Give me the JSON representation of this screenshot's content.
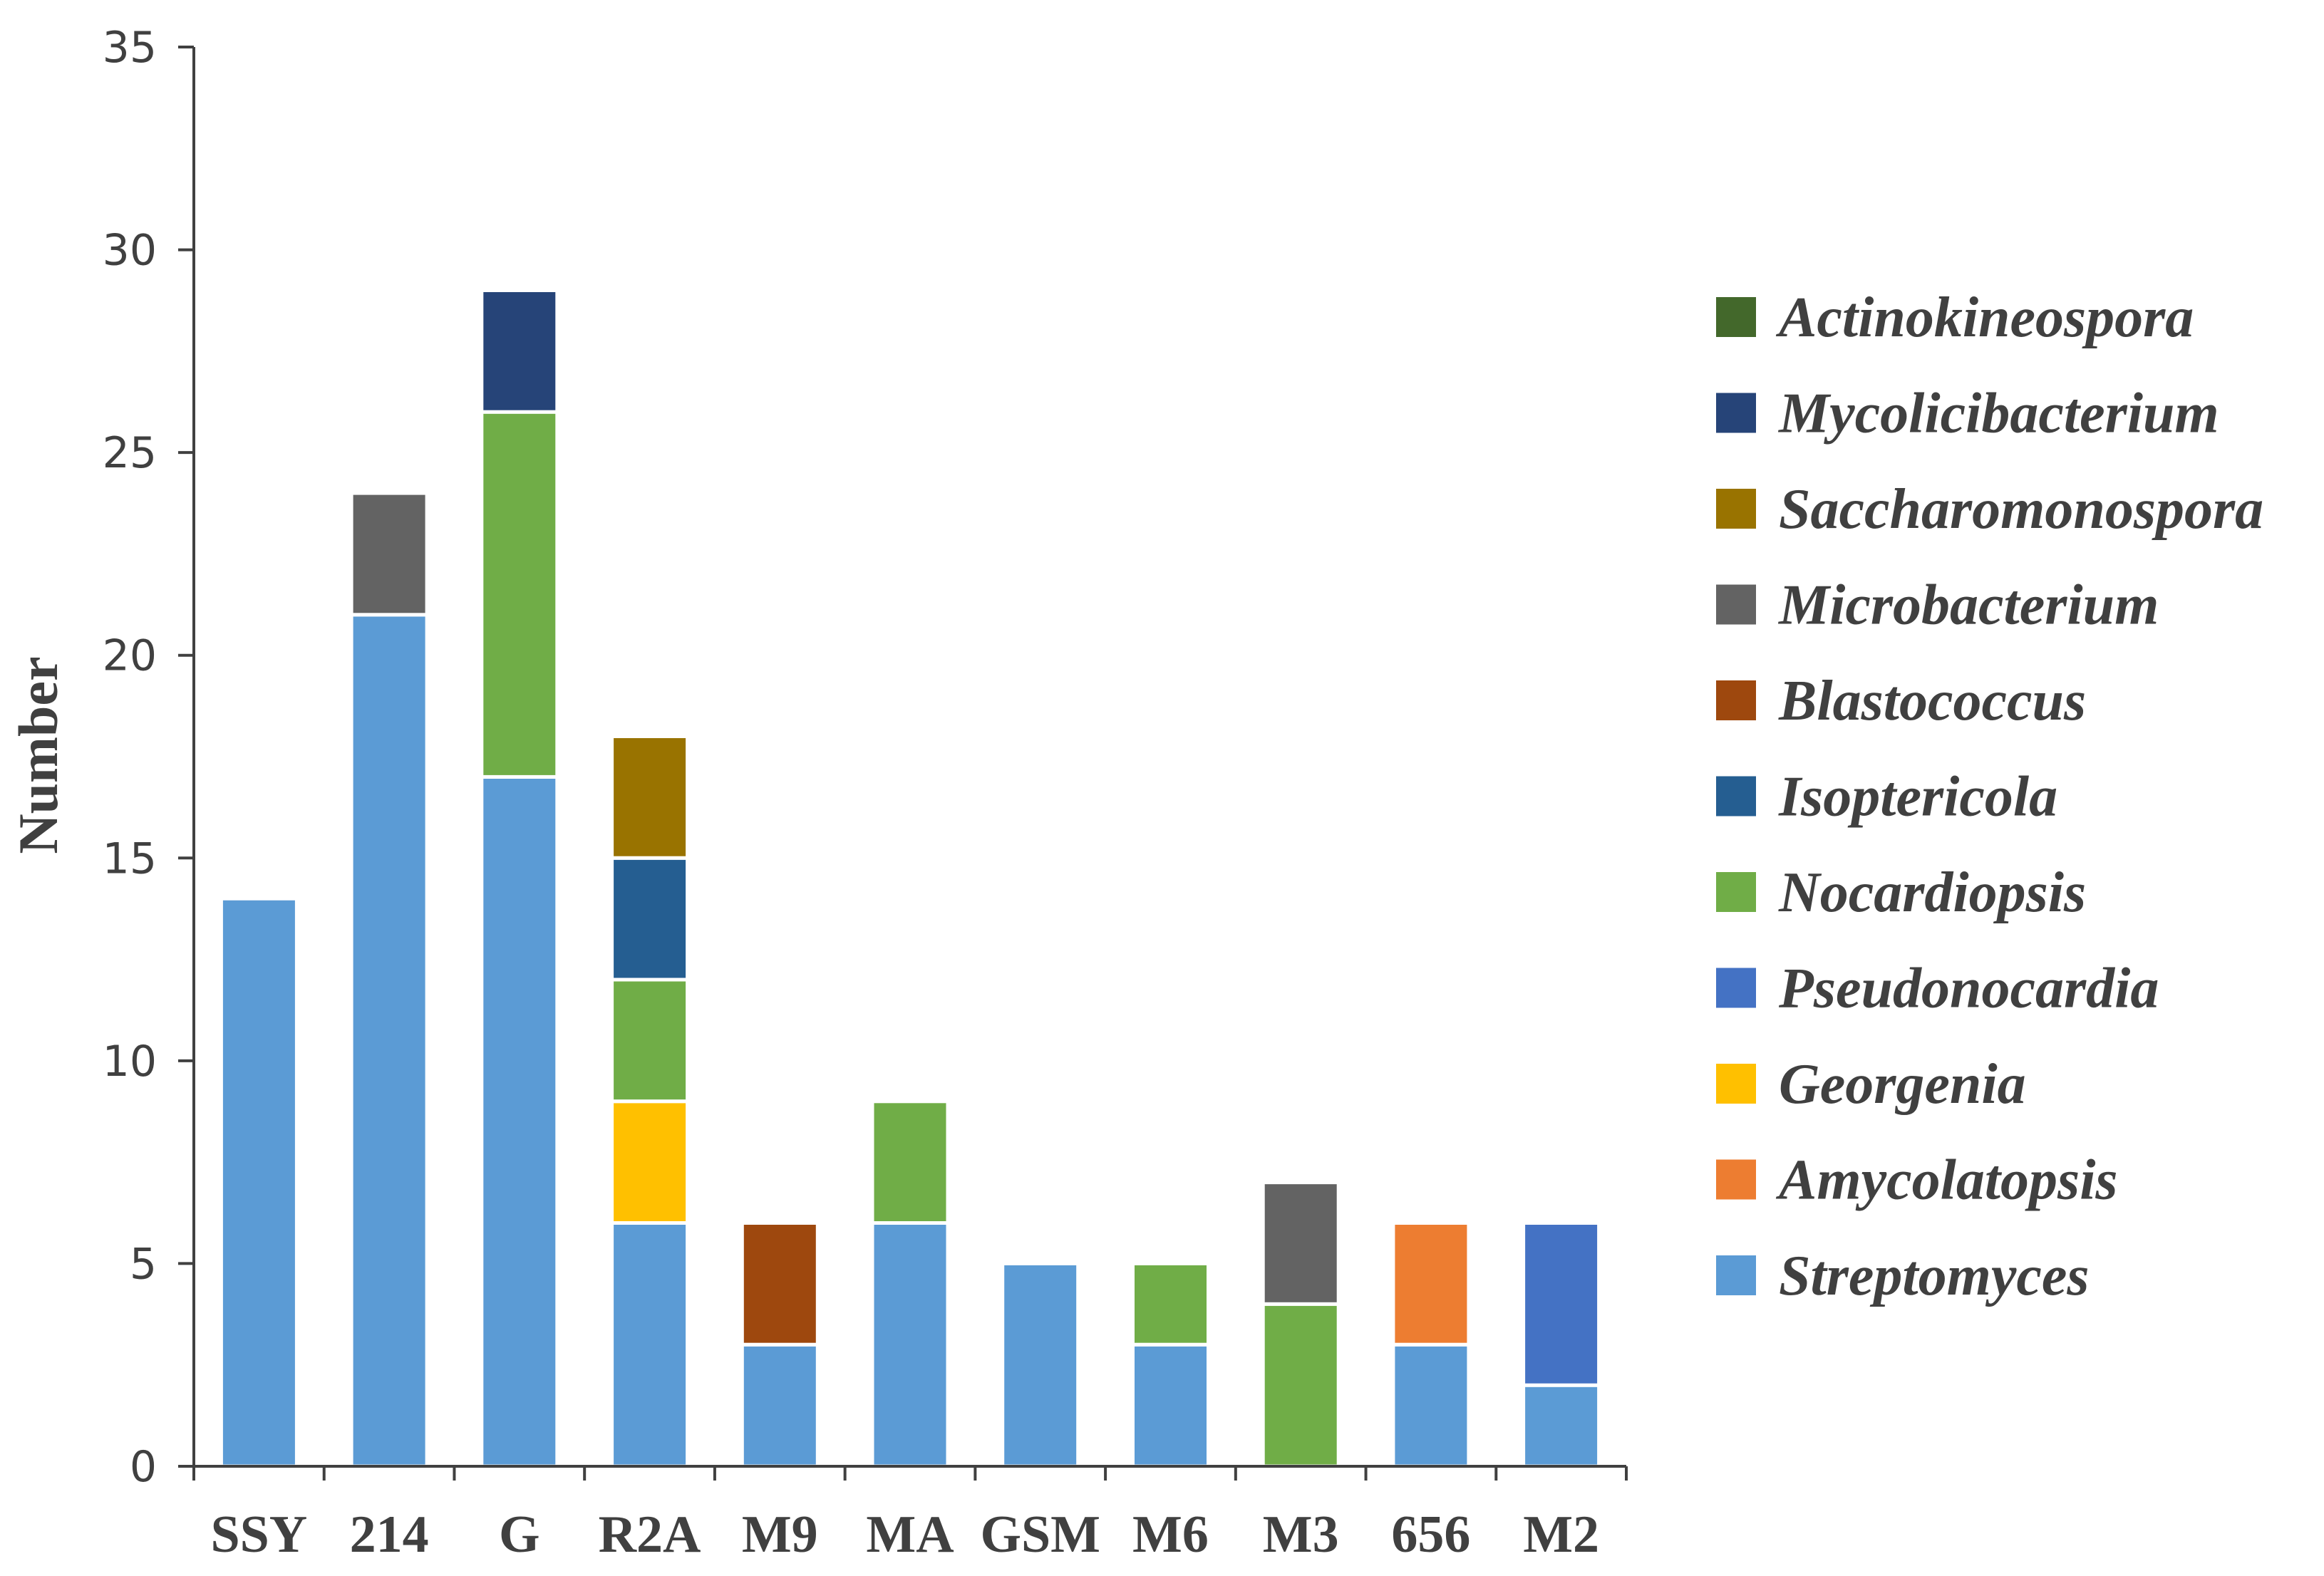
{
  "chart_data": {
    "type": "bar",
    "stacked": true,
    "title": "",
    "xlabel": "",
    "ylabel": "Number",
    "ylim": [
      0,
      35
    ],
    "yticks": [
      0,
      5,
      10,
      15,
      20,
      25,
      30,
      35
    ],
    "grid": false,
    "legend_position": "right",
    "categories": [
      "SSY",
      "214",
      "G",
      "R2A",
      "M9",
      "MA",
      "GSM",
      "M6",
      "M3",
      "656",
      "M2"
    ],
    "series": [
      {
        "name": "Streptomyces",
        "color": "#5B9BD5",
        "values": [
          14,
          21,
          17,
          6,
          3,
          6,
          5,
          3,
          0,
          3,
          2
        ]
      },
      {
        "name": "Amycolatopsis",
        "color": "#ED7D31",
        "values": [
          0,
          0,
          0,
          0,
          0,
          0,
          0,
          0,
          0,
          3,
          0
        ]
      },
      {
        "name": "Georgenia",
        "color": "#FFC000",
        "values": [
          0,
          0,
          0,
          3,
          0,
          0,
          0,
          0,
          0,
          0,
          0
        ]
      },
      {
        "name": "Pseudonocardia",
        "color": "#4472C4",
        "values": [
          0,
          0,
          0,
          0,
          0,
          0,
          0,
          0,
          0,
          0,
          4
        ]
      },
      {
        "name": "Nocardiopsis",
        "color": "#70AD47",
        "values": [
          0,
          0,
          9,
          3,
          0,
          3,
          0,
          2,
          4,
          0,
          0
        ]
      },
      {
        "name": "Isoptericola",
        "color": "#255E91",
        "values": [
          0,
          0,
          0,
          3,
          0,
          0,
          0,
          0,
          0,
          0,
          0
        ]
      },
      {
        "name": "Blastococcus",
        "color": "#9E480E",
        "values": [
          0,
          0,
          0,
          0,
          3,
          0,
          0,
          0,
          0,
          0,
          0
        ]
      },
      {
        "name": "Microbacterium",
        "color": "#636363",
        "values": [
          0,
          3,
          0,
          0,
          0,
          0,
          0,
          0,
          3,
          0,
          0
        ]
      },
      {
        "name": "Saccharomonospora",
        "color": "#997300",
        "values": [
          0,
          0,
          0,
          3,
          0,
          0,
          0,
          0,
          0,
          0,
          0
        ]
      },
      {
        "name": "Mycolicibacterium",
        "color": "#264478",
        "values": [
          0,
          0,
          3,
          0,
          0,
          0,
          0,
          0,
          0,
          0,
          0
        ]
      },
      {
        "name": "Actinokineospora",
        "color": "#43682B",
        "values": [
          0,
          0,
          0,
          0,
          0,
          0,
          0,
          0,
          0,
          0,
          0
        ]
      }
    ]
  }
}
